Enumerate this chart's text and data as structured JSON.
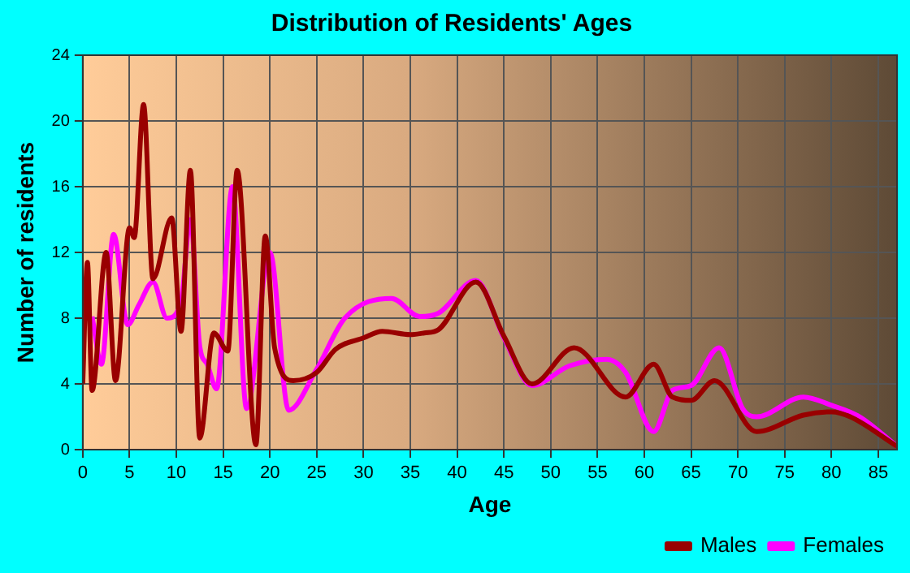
{
  "chart_data": {
    "type": "line",
    "title": "Distribution of Residents' Ages",
    "xlabel": "Age",
    "ylabel": "Number of residents",
    "xlim": [
      0,
      87
    ],
    "xticks": [
      0,
      5,
      10,
      15,
      20,
      25,
      30,
      35,
      40,
      45,
      50,
      55,
      60,
      65,
      70,
      75,
      80,
      85
    ],
    "ylim": [
      0,
      24
    ],
    "yticks": [
      0,
      4,
      8,
      12,
      16,
      20,
      24
    ],
    "grid": true,
    "legend": "bottom right",
    "marker": "none",
    "line_style": "solid",
    "series": [
      {
        "name": "Males",
        "color": "#990000",
        "x": [
          0,
          0.5,
          1,
          2.5,
          3.5,
          5,
          5.5,
          6.5,
          7.5,
          9.5,
          10.5,
          11.5,
          12.5,
          14,
          15.5,
          16.5,
          18.5,
          19.5,
          20.5,
          22.5,
          25,
          27,
          30,
          32,
          35,
          36.5,
          38,
          42,
          45,
          48,
          52.5,
          58,
          61,
          63,
          65,
          67.5,
          72,
          77,
          80,
          82,
          87
        ],
        "values": [
          4,
          11.4,
          3.6,
          12,
          4.2,
          13.5,
          12.9,
          21,
          10.4,
          14.1,
          7.2,
          17,
          0.7,
          7.1,
          6,
          17,
          0.3,
          13,
          6.2,
          4.2,
          4.7,
          6.1,
          6.8,
          7.2,
          7,
          7.1,
          7.3,
          10.2,
          6.9,
          4,
          6.2,
          3.2,
          5.2,
          3.2,
          3,
          4.2,
          1.1,
          2.1,
          2.3,
          2,
          0.2
        ]
      },
      {
        "name": "Females",
        "color": "#ff00ff",
        "x": [
          1,
          2,
          3.3,
          4.8,
          6,
          7.5,
          9,
          10.5,
          11.5,
          12.5,
          13.3,
          14.3,
          16,
          17.5,
          20,
          22,
          25,
          28,
          33,
          36,
          38,
          42,
          45,
          48,
          52,
          56,
          58,
          61,
          63,
          65,
          68,
          70.5,
          72,
          77,
          80,
          83,
          87
        ],
        "values": [
          8.1,
          5.2,
          13.1,
          7.6,
          8.8,
          10.2,
          8,
          9,
          14,
          6.3,
          5.2,
          3.7,
          16,
          2.5,
          12,
          2.4,
          4.9,
          8,
          9.2,
          8.1,
          8.3,
          10.3,
          6.8,
          3.9,
          5.1,
          5.5,
          4.7,
          1.1,
          3.6,
          3.9,
          6.2,
          2.5,
          2,
          3.2,
          2.7,
          2,
          0.2
        ]
      }
    ]
  }
}
